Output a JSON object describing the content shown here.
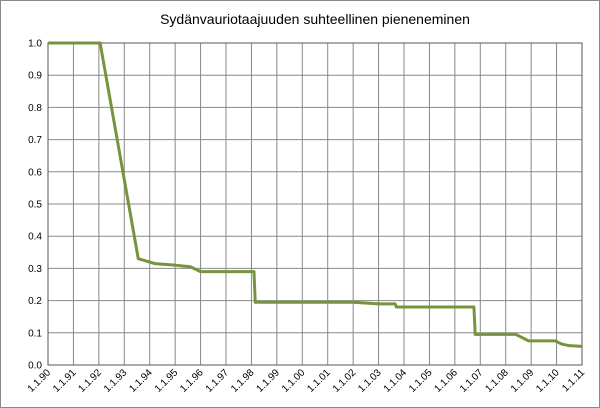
{
  "chart_data": {
    "type": "line",
    "title": "Sydänvauriotaajuuden suhteellinen pieneneminen",
    "x": [
      1990,
      1992.05,
      1993.55,
      1994.2,
      1995.0,
      1995.6,
      1996.0,
      1998.1,
      1998.15,
      2002.0,
      2003.0,
      2003.65,
      2003.7,
      2006.75,
      2006.8,
      2008.4,
      2008.9,
      2009.95,
      2010.2,
      2010.5,
      2011.0
    ],
    "values": [
      1.0,
      1.0,
      0.33,
      0.315,
      0.31,
      0.305,
      0.29,
      0.29,
      0.195,
      0.195,
      0.19,
      0.19,
      0.18,
      0.18,
      0.095,
      0.095,
      0.075,
      0.075,
      0.065,
      0.06,
      0.058
    ],
    "color": "#77933c",
    "xlim": [
      1990,
      2011
    ],
    "xticks": [
      {
        "value": 1990,
        "label": "1.1.90"
      },
      {
        "value": 1991,
        "label": "1.1.91"
      },
      {
        "value": 1992,
        "label": "1.1.92"
      },
      {
        "value": 1993,
        "label": "1.1.93"
      },
      {
        "value": 1994,
        "label": "1.1.94"
      },
      {
        "value": 1995,
        "label": "1.1.95"
      },
      {
        "value": 1996,
        "label": "1.1.96"
      },
      {
        "value": 1997,
        "label": "1.1.97"
      },
      {
        "value": 1998,
        "label": "1.1.98"
      },
      {
        "value": 1999,
        "label": "1.1.99"
      },
      {
        "value": 2000,
        "label": "1.1.00"
      },
      {
        "value": 2001,
        "label": "1.1.01"
      },
      {
        "value": 2002,
        "label": "1.1.02"
      },
      {
        "value": 2003,
        "label": "1.1.03"
      },
      {
        "value": 2004,
        "label": "1.1.04"
      },
      {
        "value": 2005,
        "label": "1.1.05"
      },
      {
        "value": 2006,
        "label": "1.1.06"
      },
      {
        "value": 2007,
        "label": "1.1.07"
      },
      {
        "value": 2008,
        "label": "1.1.08"
      },
      {
        "value": 2009,
        "label": "1.1.09"
      },
      {
        "value": 2010,
        "label": "1.1.10"
      },
      {
        "value": 2011,
        "label": "1.1.11"
      }
    ],
    "ylim": [
      0,
      1
    ],
    "yticks": [
      {
        "value": 0,
        "label": "0.0"
      },
      0.1,
      0.2,
      0.3,
      0.4,
      0.5,
      0.6,
      0.7,
      0.8,
      0.9,
      {
        "value": 1,
        "label": "1.0"
      }
    ],
    "grid": true
  }
}
